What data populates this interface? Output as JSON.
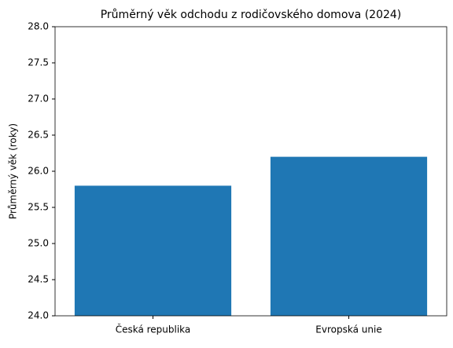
{
  "chart_data": {
    "type": "bar",
    "title": "Průměrný věk odchodu z rodičovského domova (2024)",
    "ylabel": "Průměrný věk (roky)",
    "categories": [
      "Česká republika",
      "Evropská unie"
    ],
    "values": [
      25.8,
      26.2
    ],
    "color": "#1f77b4",
    "ylim": [
      24,
      28
    ],
    "yticks": [
      {
        "value": 24,
        "label": "24.0"
      },
      24.5,
      {
        "value": 25,
        "label": "25.0"
      },
      25.5,
      {
        "value": 26,
        "label": "26.0"
      },
      26.5,
      {
        "value": 27,
        "label": "27.0"
      },
      27.5,
      {
        "value": 28,
        "label": "28.0"
      }
    ],
    "grid": false
  }
}
